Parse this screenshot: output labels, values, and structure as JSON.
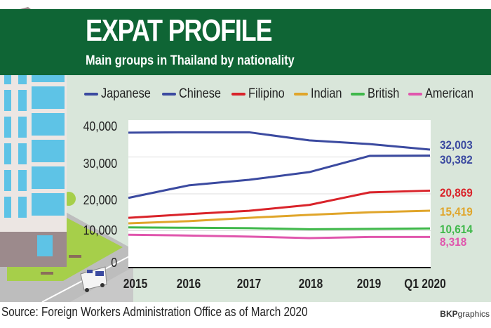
{
  "header": {
    "title": "EXPAT PROFILE",
    "subtitle": "Main groups in Thailand by nationality"
  },
  "legend": [
    {
      "label": "Japanese",
      "color": "#3b4aa0"
    },
    {
      "label": "Chinese",
      "color": "#3b4aa0"
    },
    {
      "label": "Filipino",
      "color": "#d9232a"
    },
    {
      "label": "Indian",
      "color": "#e0a52a"
    },
    {
      "label": "British",
      "color": "#3fb84a"
    },
    {
      "label": "American",
      "color": "#e056ad"
    }
  ],
  "end_labels": [
    {
      "text": "32,003",
      "color": "#3b4aa0"
    },
    {
      "text": "30,382",
      "color": "#3b4aa0"
    },
    {
      "text": "20,869",
      "color": "#d9232a"
    },
    {
      "text": "15,419",
      "color": "#e0a52a"
    },
    {
      "text": "10,614",
      "color": "#3fb84a"
    },
    {
      "text": "8,318",
      "color": "#e056ad"
    }
  ],
  "footer": {
    "source": "Source: Foreign Workers Administration Office as of March 2020",
    "credit_bold": "BKP",
    "credit_rest": "graphics"
  },
  "chart_data": {
    "type": "line",
    "title": "EXPAT PROFILE",
    "subtitle": "Main groups in Thailand by nationality",
    "xlabel": "",
    "ylabel": "",
    "categories": [
      "2015",
      "2016",
      "2017",
      "2018",
      "2019",
      "Q1 2020"
    ],
    "yticks": [
      "0",
      "10,000",
      "20,000",
      "30,000",
      "40,000"
    ],
    "ylim": [
      0,
      40000
    ],
    "grid": true,
    "legend_position": "top",
    "series": [
      {
        "name": "Japanese",
        "color": "#3b4aa0",
        "values": [
          36600,
          36700,
          36700,
          34500,
          33500,
          32003
        ]
      },
      {
        "name": "Chinese",
        "color": "#3b4aa0",
        "values": [
          18900,
          22300,
          23800,
          25900,
          30300,
          30382
        ]
      },
      {
        "name": "Filipino",
        "color": "#d9232a",
        "values": [
          13500,
          14500,
          15400,
          17000,
          20400,
          20869
        ]
      },
      {
        "name": "Indian",
        "color": "#e0a52a",
        "values": [
          12000,
          12600,
          13500,
          14300,
          15000,
          15419
        ]
      },
      {
        "name": "British",
        "color": "#3fb84a",
        "values": [
          10900,
          10800,
          10700,
          10400,
          10500,
          10614
        ]
      },
      {
        "name": "American",
        "color": "#e056ad",
        "values": [
          8900,
          8700,
          8400,
          8000,
          8300,
          8318
        ]
      }
    ],
    "annotations": [
      "32,003",
      "30,382",
      "20,869",
      "15,419",
      "10,614",
      "8,318"
    ],
    "source": "Source: Foreign Workers Administration Office as of March 2020"
  }
}
